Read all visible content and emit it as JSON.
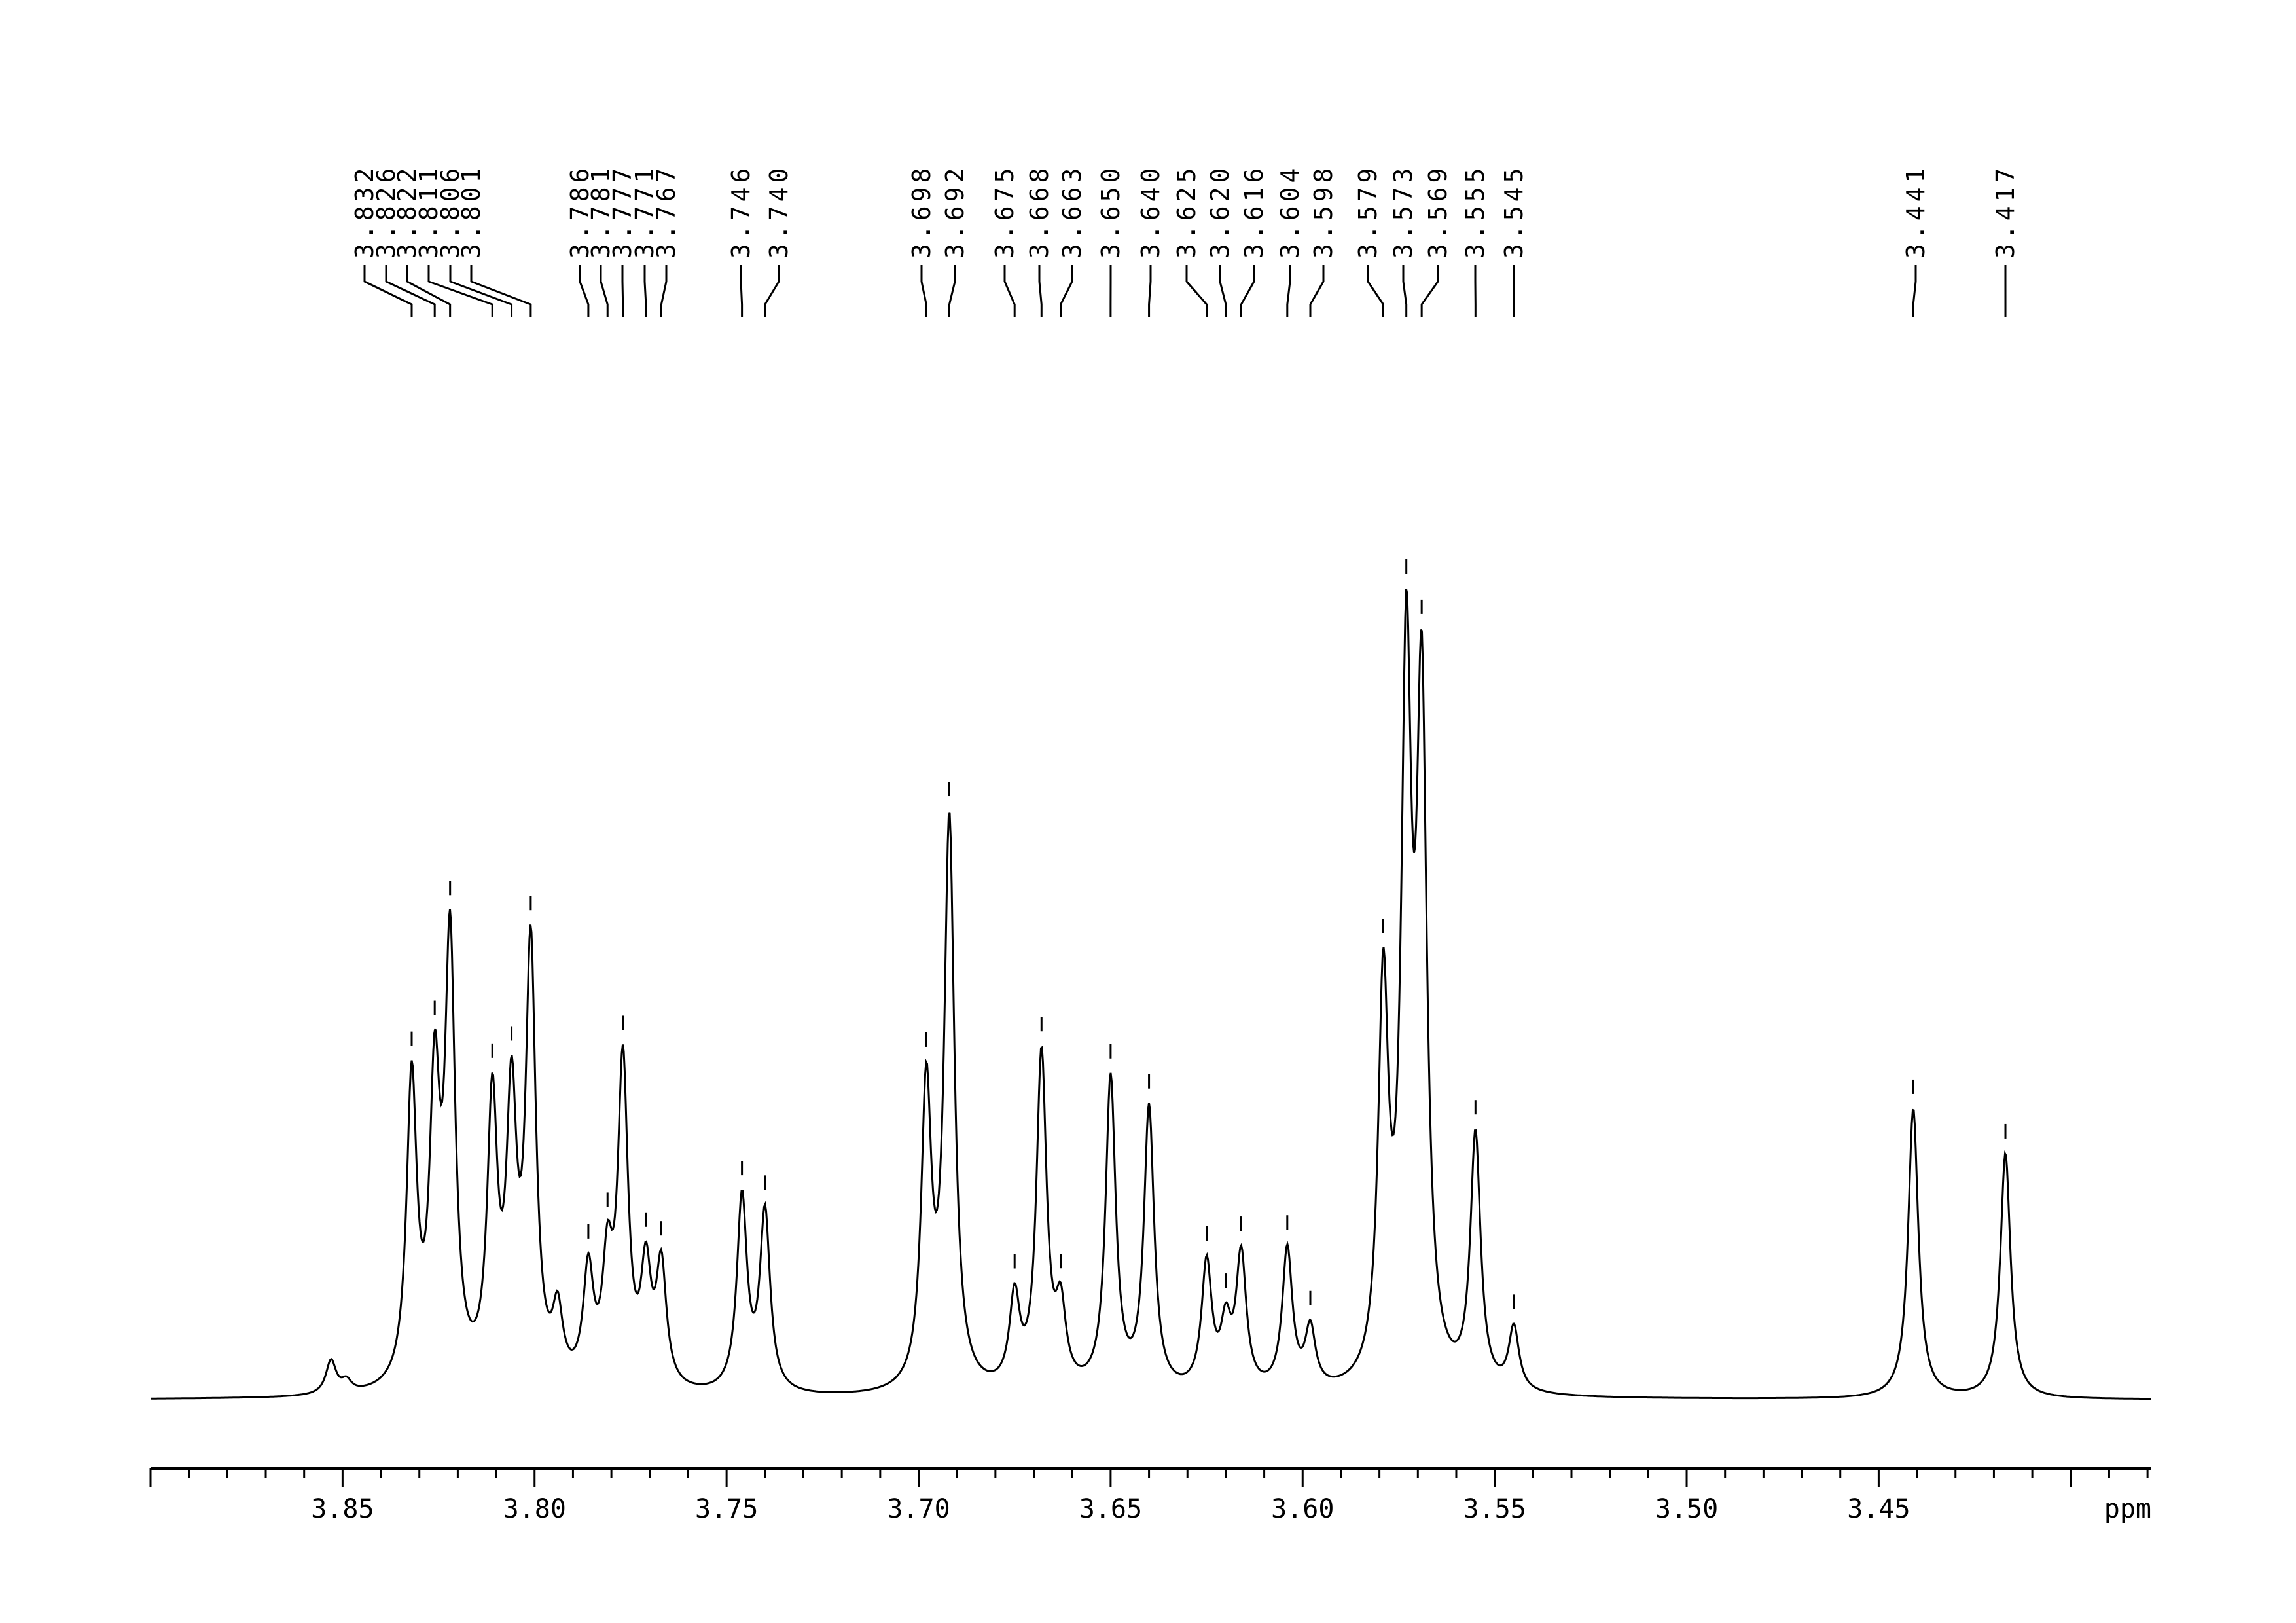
{
  "chart_data": {
    "type": "line",
    "title": "",
    "xlabel": "ppm",
    "ylabel": "",
    "xlim": [
      3.9,
      3.379
    ],
    "x_reversed": true,
    "grid": false,
    "x_ticks": [
      "3.85",
      "3.80",
      "3.75",
      "3.70",
      "3.65",
      "3.60",
      "3.55",
      "3.50",
      "3.45"
    ],
    "x_tick_values": [
      3.85,
      3.8,
      3.75,
      3.7,
      3.65,
      3.6,
      3.55,
      3.5,
      3.45
    ],
    "minor_tick_step": 0.01,
    "line_color": "#000000",
    "peak_labels": [
      "3.832",
      "3.826",
      "3.822",
      "3.811",
      "3.806",
      "3.801",
      "3.786",
      "3.781",
      "3.777",
      "3.771",
      "3.767",
      "3.746",
      "3.740",
      "3.698",
      "3.692",
      "3.675",
      "3.668",
      "3.663",
      "3.650",
      "3.640",
      "3.625",
      "3.620",
      "3.616",
      "3.604",
      "3.598",
      "3.579",
      "3.573",
      "3.569",
      "3.555",
      "3.545",
      "3.441",
      "3.417"
    ],
    "peaks": [
      {
        "ppm": 3.853,
        "intensity": 4.5,
        "labeled": false
      },
      {
        "ppm": 3.849,
        "intensity": 1.5,
        "labeled": false
      },
      {
        "ppm": 3.832,
        "intensity": 41
      },
      {
        "ppm": 3.826,
        "intensity": 38
      },
      {
        "ppm": 3.822,
        "intensity": 58
      },
      {
        "ppm": 3.811,
        "intensity": 37
      },
      {
        "ppm": 3.806,
        "intensity": 36
      },
      {
        "ppm": 3.801,
        "intensity": 58
      },
      {
        "ppm": 3.794,
        "intensity": 9,
        "labeled": false
      },
      {
        "ppm": 3.786,
        "intensity": 15
      },
      {
        "ppm": 3.781,
        "intensity": 15
      },
      {
        "ppm": 3.777,
        "intensity": 43
      },
      {
        "ppm": 3.771,
        "intensity": 15
      },
      {
        "ppm": 3.767,
        "intensity": 16
      },
      {
        "ppm": 3.746,
        "intensity": 26
      },
      {
        "ppm": 3.74,
        "intensity": 24
      },
      {
        "ppm": 3.698,
        "intensity": 40
      },
      {
        "ppm": 3.692,
        "intensity": 76
      },
      {
        "ppm": 3.675,
        "intensity": 12
      },
      {
        "ppm": 3.668,
        "intensity": 45
      },
      {
        "ppm": 3.663,
        "intensity": 10
      },
      {
        "ppm": 3.65,
        "intensity": 42
      },
      {
        "ppm": 3.64,
        "intensity": 38
      },
      {
        "ppm": 3.625,
        "intensity": 17
      },
      {
        "ppm": 3.62,
        "intensity": 8
      },
      {
        "ppm": 3.616,
        "intensity": 18
      },
      {
        "ppm": 3.604,
        "intensity": 19
      },
      {
        "ppm": 3.598,
        "intensity": 8
      },
      {
        "ppm": 3.579,
        "intensity": 52
      },
      {
        "ppm": 3.573,
        "intensity": 93
      },
      {
        "ppm": 3.569,
        "intensity": 89
      },
      {
        "ppm": 3.555,
        "intensity": 34
      },
      {
        "ppm": 3.545,
        "intensity": 8.5
      },
      {
        "ppm": 3.441,
        "intensity": 39
      },
      {
        "ppm": 3.417,
        "intensity": 33
      }
    ]
  }
}
